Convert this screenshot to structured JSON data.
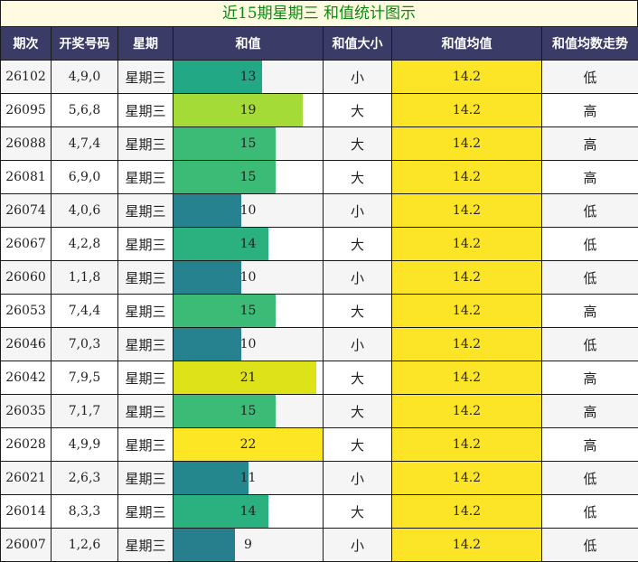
{
  "title": "近15期星期三 和值统计图示",
  "headers": [
    "期次",
    "开奖号码",
    "星期",
    "和值",
    "和值大小",
    "和值均值",
    "和值均数走势"
  ],
  "sum_scale_max": 22,
  "colors": {
    "header_bg": "#3a3b66",
    "title_bg": "#fffbe0",
    "title_text": "#0a8a10",
    "avg_bg": "#fce426"
  },
  "rows": [
    {
      "issue": "26102",
      "numbers": "4,9,0",
      "weekday": "星期三",
      "sum": 13,
      "size": "小",
      "avg": "14.2",
      "trend": "低",
      "bar_color": "#22a884"
    },
    {
      "issue": "26095",
      "numbers": "5,6,8",
      "weekday": "星期三",
      "sum": 19,
      "size": "大",
      "avg": "14.2",
      "trend": "高",
      "bar_color": "#a5db36"
    },
    {
      "issue": "26088",
      "numbers": "4,7,4",
      "weekday": "星期三",
      "sum": 15,
      "size": "大",
      "avg": "14.2",
      "trend": "高",
      "bar_color": "#3bbb75"
    },
    {
      "issue": "26081",
      "numbers": "6,9,0",
      "weekday": "星期三",
      "sum": 15,
      "size": "大",
      "avg": "14.2",
      "trend": "高",
      "bar_color": "#3bbb75"
    },
    {
      "issue": "26074",
      "numbers": "4,0,6",
      "weekday": "星期三",
      "sum": 10,
      "size": "小",
      "avg": "14.2",
      "trend": "低",
      "bar_color": "#26828e"
    },
    {
      "issue": "26067",
      "numbers": "4,2,8",
      "weekday": "星期三",
      "sum": 14,
      "size": "大",
      "avg": "14.2",
      "trend": "低",
      "bar_color": "#2bb07f"
    },
    {
      "issue": "26060",
      "numbers": "1,1,8",
      "weekday": "星期三",
      "sum": 10,
      "size": "小",
      "avg": "14.2",
      "trend": "低",
      "bar_color": "#26828e"
    },
    {
      "issue": "26053",
      "numbers": "7,4,4",
      "weekday": "星期三",
      "sum": 15,
      "size": "大",
      "avg": "14.2",
      "trend": "高",
      "bar_color": "#3bbb75"
    },
    {
      "issue": "26046",
      "numbers": "7,0,3",
      "weekday": "星期三",
      "sum": 10,
      "size": "小",
      "avg": "14.2",
      "trend": "低",
      "bar_color": "#26828e"
    },
    {
      "issue": "26042",
      "numbers": "7,9,5",
      "weekday": "星期三",
      "sum": 21,
      "size": "大",
      "avg": "14.2",
      "trend": "高",
      "bar_color": "#dde318"
    },
    {
      "issue": "26035",
      "numbers": "7,1,7",
      "weekday": "星期三",
      "sum": 15,
      "size": "大",
      "avg": "14.2",
      "trend": "高",
      "bar_color": "#3bbb75"
    },
    {
      "issue": "26028",
      "numbers": "4,9,9",
      "weekday": "星期三",
      "sum": 22,
      "size": "大",
      "avg": "14.2",
      "trend": "高",
      "bar_color": "#fde725"
    },
    {
      "issue": "26021",
      "numbers": "2,6,3",
      "weekday": "星期三",
      "sum": 11,
      "size": "小",
      "avg": "14.2",
      "trend": "低",
      "bar_color": "#24878e"
    },
    {
      "issue": "26014",
      "numbers": "8,3,3",
      "weekday": "星期三",
      "sum": 14,
      "size": "大",
      "avg": "14.2",
      "trend": "低",
      "bar_color": "#2bb07f"
    },
    {
      "issue": "26007",
      "numbers": "1,2,6",
      "weekday": "星期三",
      "sum": 9,
      "size": "小",
      "avg": "14.2",
      "trend": "低",
      "bar_color": "#277f8e"
    }
  ]
}
